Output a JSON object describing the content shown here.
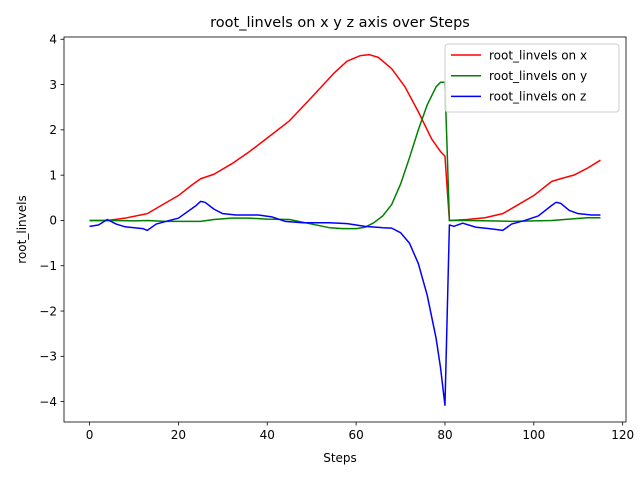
{
  "chart_data": {
    "type": "line",
    "title": "root_linvels on x y z axis over Steps",
    "xlabel": "Steps",
    "ylabel": "root_linvels",
    "xlim": [
      -5.75,
      120.75
    ],
    "ylim": [
      -4.45,
      4.05
    ],
    "xticks": [
      0,
      20,
      40,
      60,
      80,
      100,
      120
    ],
    "xtick_labels": [
      "0",
      "20",
      "40",
      "60",
      "80",
      "100",
      "120"
    ],
    "yticks": [
      -4,
      -3,
      -2,
      -1,
      0,
      1,
      2,
      3,
      4
    ],
    "ytick_labels": [
      "−4",
      "−3",
      "−2",
      "−1",
      "0",
      "1",
      "2",
      "3",
      "4"
    ],
    "grid": false,
    "legend_position": "top-right",
    "series": [
      {
        "name": "root_linvels on x",
        "color": "#ff0000",
        "x": [
          0,
          4,
          8,
          13,
          17,
          20,
          23,
          25,
          28,
          32,
          36,
          40,
          45,
          50,
          55,
          58,
          61,
          63,
          65,
          68,
          71,
          74,
          77,
          79,
          80,
          81,
          85,
          89,
          93,
          96,
          100,
          104,
          106,
          109,
          112,
          115
        ],
        "y": [
          0.0,
          0.0,
          0.05,
          0.15,
          0.38,
          0.55,
          0.78,
          0.92,
          1.02,
          1.25,
          1.52,
          1.82,
          2.2,
          2.72,
          3.25,
          3.52,
          3.64,
          3.66,
          3.6,
          3.35,
          2.95,
          2.4,
          1.8,
          1.52,
          1.42,
          0.0,
          0.02,
          0.06,
          0.15,
          0.32,
          0.55,
          0.86,
          0.92,
          1.0,
          1.15,
          1.33
        ]
      },
      {
        "name": "root_linvels on y",
        "color": "#008000",
        "x": [
          0,
          5,
          10,
          13,
          17,
          20,
          25,
          28,
          32,
          36,
          40,
          45,
          50,
          54,
          57,
          60,
          62,
          64,
          66,
          68,
          70,
          72,
          74,
          76,
          78,
          79,
          80,
          81,
          85,
          90,
          95,
          100,
          104,
          108,
          112,
          115
        ],
        "y": [
          0.0,
          0.0,
          -0.01,
          0.0,
          -0.02,
          -0.02,
          -0.02,
          0.02,
          0.05,
          0.05,
          0.03,
          0.02,
          -0.08,
          -0.16,
          -0.18,
          -0.18,
          -0.15,
          -0.05,
          0.1,
          0.35,
          0.8,
          1.38,
          2.0,
          2.55,
          2.95,
          3.05,
          3.05,
          0.0,
          0.0,
          -0.01,
          -0.02,
          -0.01,
          0.0,
          0.03,
          0.06,
          0.06
        ]
      },
      {
        "name": "root_linvels on z",
        "color": "#0000ff",
        "x": [
          0,
          2,
          4,
          6,
          8,
          12,
          13,
          15,
          18,
          20,
          24,
          25,
          26,
          28,
          30,
          33,
          38,
          41,
          44,
          48,
          54,
          58,
          62,
          66,
          68,
          70,
          72,
          74,
          76,
          78,
          79,
          80,
          81,
          82,
          84,
          87,
          90,
          93,
          95,
          98,
          101,
          104,
          105,
          106,
          108,
          110,
          113,
          115
        ],
        "y": [
          -0.13,
          -0.1,
          0.02,
          -0.08,
          -0.14,
          -0.18,
          -0.22,
          -0.08,
          0.0,
          0.05,
          0.33,
          0.42,
          0.4,
          0.25,
          0.15,
          0.12,
          0.12,
          0.08,
          -0.02,
          -0.05,
          -0.05,
          -0.07,
          -0.13,
          -0.16,
          -0.17,
          -0.27,
          -0.5,
          -0.95,
          -1.65,
          -2.6,
          -3.25,
          -4.08,
          -0.1,
          -0.13,
          -0.06,
          -0.15,
          -0.18,
          -0.22,
          -0.08,
          0.0,
          0.1,
          0.33,
          0.4,
          0.38,
          0.22,
          0.15,
          0.12,
          0.12
        ]
      }
    ]
  }
}
